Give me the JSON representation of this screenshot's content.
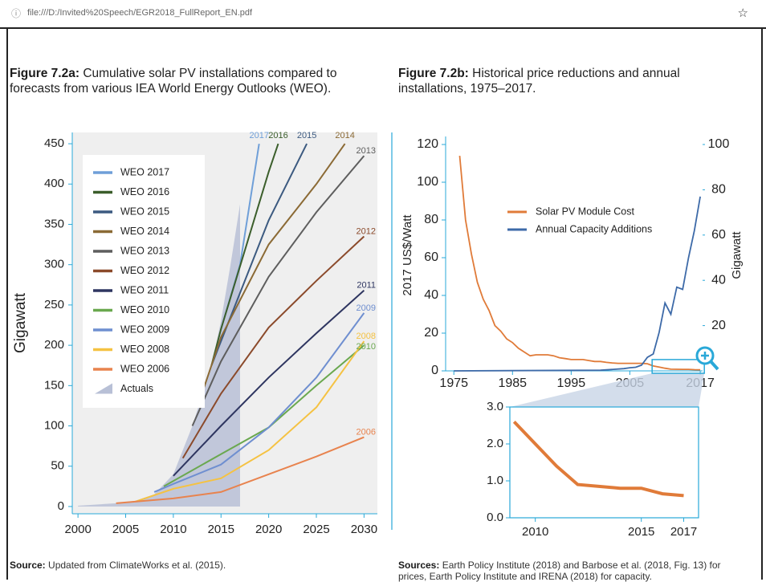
{
  "browser": {
    "url": "file:///D:/Invited%20Speech/EGR2018_FullReport_EN.pdf",
    "star": "☆"
  },
  "figures": [
    {
      "label": "Figure 7.2a:",
      "caption": "Cumulative solar PV installations compared to forecasts from various IEA World Energy Outlooks (WEO).",
      "source_label": "Source:",
      "source": "Updated from ClimateWorks et al. (2015)."
    },
    {
      "label": "Figure 7.2b:",
      "caption": "Historical price reductions and annual installations, 1975–2017.",
      "source_label": "Sources:",
      "source": "Earth Policy Institute (2018) and Barbose et al. (2018, Fig. 13) for prices, Earth Policy Institute and IRENA (2018) for capacity."
    }
  ],
  "chart_data": [
    {
      "type": "line",
      "ylabel": "Gigawatt",
      "xlim": [
        1999.4,
        2031.4
      ],
      "xticks": [
        2000,
        2005,
        2010,
        2015,
        2020,
        2025,
        2030
      ],
      "ylim": [
        -9,
        464
      ],
      "yticks": [
        0,
        50,
        100,
        150,
        200,
        250,
        300,
        350,
        400,
        450
      ],
      "series": [
        {
          "name": "WEO 2017",
          "color": "#6f9fd8",
          "end_label": "2017",
          "x": [
            2015,
            2017,
            2019
          ],
          "values": [
            220,
            300,
            450
          ]
        },
        {
          "name": "WEO 2016",
          "color": "#3b5e2b",
          "end_label": "2016",
          "x": [
            2014,
            2015,
            2020,
            2021
          ],
          "values": [
            175,
            220,
            415,
            450
          ]
        },
        {
          "name": "WEO 2015",
          "color": "#3c5a80",
          "end_label": "2015",
          "x": [
            2014,
            2015,
            2020,
            2024
          ],
          "values": [
            175,
            205,
            355,
            450
          ]
        },
        {
          "name": "WEO 2014",
          "color": "#8b6a35",
          "end_label": "2014",
          "x": [
            2013,
            2015,
            2020,
            2025,
            2028
          ],
          "values": [
            140,
            210,
            325,
            400,
            450
          ]
        },
        {
          "name": "WEO 2013",
          "color": "#5e5e5e",
          "end_label": "2013",
          "x": [
            2012,
            2015,
            2020,
            2025,
            2030
          ],
          "values": [
            100,
            180,
            285,
            365,
            435
          ]
        },
        {
          "name": "WEO 2012",
          "color": "#8b4a2b",
          "end_label": "2012",
          "x": [
            2011,
            2015,
            2020,
            2025,
            2030
          ],
          "values": [
            60,
            140,
            222,
            280,
            335
          ]
        },
        {
          "name": "WEO 2011",
          "color": "#2e3560",
          "end_label": "2011",
          "x": [
            2010,
            2015,
            2020,
            2025,
            2030
          ],
          "values": [
            38,
            100,
            160,
            215,
            268
          ]
        },
        {
          "name": "WEO 2010",
          "color": "#6aa84f",
          "end_label": "2010",
          "x": [
            2009,
            2015,
            2020,
            2025,
            2030
          ],
          "values": [
            25,
            65,
            98,
            150,
            200
          ]
        },
        {
          "name": "WEO 2009",
          "color": "#6f8fd0",
          "end_label": "2009",
          "x": [
            2008,
            2010,
            2015,
            2020,
            2025,
            2030
          ],
          "values": [
            18,
            28,
            52,
            98,
            160,
            240
          ]
        },
        {
          "name": "WEO 2008",
          "color": "#f5c242",
          "end_label": "2008",
          "x": [
            2006,
            2010,
            2015,
            2020,
            2025,
            2030
          ],
          "values": [
            6,
            22,
            35,
            70,
            123,
            205
          ]
        },
        {
          "name": "WEO 2006",
          "color": "#e8834e",
          "end_label": "2006",
          "x": [
            2004,
            2010,
            2015,
            2020,
            2025,
            2030
          ],
          "values": [
            4,
            10,
            18,
            40,
            62,
            86
          ]
        },
        {
          "name": "Actuals",
          "color": "#b8c0d6",
          "style": "area",
          "x": [
            2000,
            2004,
            2006,
            2008,
            2010,
            2012,
            2014,
            2015,
            2016,
            2017
          ],
          "values": [
            1,
            4,
            7,
            15,
            40,
            100,
            175,
            230,
            300,
            375
          ]
        }
      ]
    },
    {
      "type": "line",
      "ylabel": "2017 US$/Watt",
      "y2label": "Gigawatt",
      "xlim": [
        1973.6,
        2017.4
      ],
      "xticks": [
        1975,
        1985,
        1995,
        2005,
        2017
      ],
      "ylim": [
        0,
        120
      ],
      "yticks": [
        0,
        20,
        40,
        60,
        80,
        100,
        120
      ],
      "y2lim": [
        0,
        100
      ],
      "y2ticks": [
        20,
        40,
        60,
        80,
        100
      ],
      "series": [
        {
          "name": "Solar PV Module Cost",
          "color": "#e07b39",
          "x": [
            1976,
            1977,
            1978,
            1979,
            1980,
            1981,
            1982,
            1983,
            1984,
            1985,
            1986,
            1987,
            1988,
            1989,
            1990,
            1991,
            1992,
            1993,
            1994,
            1995,
            1996,
            1997,
            1998,
            1999,
            2000,
            2001,
            2002,
            2003,
            2004,
            2005,
            2006,
            2007,
            2008,
            2009,
            2010,
            2011,
            2012,
            2013,
            2014,
            2015,
            2016,
            2017
          ],
          "values": [
            114,
            80,
            62,
            47,
            38,
            32,
            24,
            21,
            17,
            15,
            12,
            10,
            8,
            8.5,
            8.5,
            8.5,
            8,
            7,
            6.5,
            6,
            6,
            6,
            5.5,
            5,
            5,
            4.5,
            4.2,
            4,
            4,
            4,
            4,
            4,
            3.8,
            2.6,
            2,
            1.4,
            0.9,
            0.85,
            0.8,
            0.8,
            0.65,
            0.6
          ]
        },
        {
          "name": "Annual Capacity Additions",
          "color": "#3d6aa8",
          "axis": "y2",
          "x": [
            1975,
            2000,
            2004,
            2005,
            2006,
            2007,
            2008,
            2009,
            2010,
            2011,
            2012,
            2013,
            2014,
            2015,
            2016,
            2017
          ],
          "values": [
            0,
            0.3,
            1,
            1.4,
            1.6,
            2.5,
            6,
            7.5,
            17,
            30,
            25,
            37,
            36,
            50,
            62,
            77
          ]
        }
      ]
    },
    {
      "type": "inset",
      "xlim": [
        2008.8,
        2017.7
      ],
      "xticks": [
        2010,
        2015,
        2017
      ],
      "ylim": [
        0,
        3
      ],
      "yticks": [
        {
          "value": 0,
          "label": "0.0"
        },
        {
          "value": 1,
          "label": "1.0"
        },
        {
          "value": 2,
          "label": "2.0"
        },
        {
          "value": 3,
          "label": "3.0"
        }
      ]
    }
  ]
}
